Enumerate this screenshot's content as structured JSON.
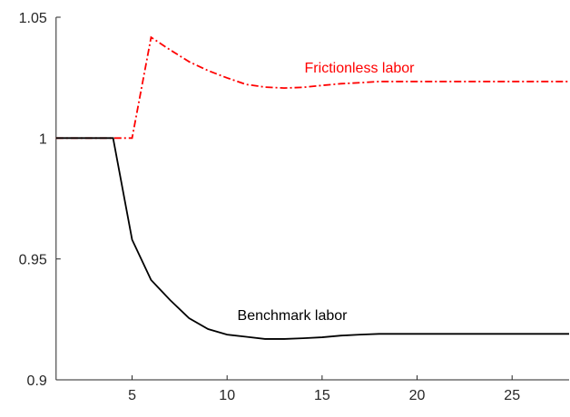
{
  "chart_data": {
    "type": "line",
    "x": [
      1,
      2,
      3,
      4,
      5,
      6,
      7,
      8,
      9,
      10,
      11,
      12,
      13,
      14,
      15,
      16,
      17,
      18,
      19,
      20,
      21,
      22,
      23,
      24,
      25,
      26,
      27,
      28
    ],
    "series": [
      {
        "name": "Frictionless labor",
        "color": "#ff0000",
        "dash": "dashdot",
        "values": [
          1,
          1,
          1,
          1,
          1,
          1.0417,
          1.0365,
          1.0316,
          1.0279,
          1.0249,
          1.0222,
          1.0211,
          1.0207,
          1.021,
          1.0218,
          1.0225,
          1.0229,
          1.0234,
          1.0234,
          1.0234,
          1.0234,
          1.0234,
          1.0234,
          1.0234,
          1.0234,
          1.0234,
          1.0234,
          1.0234
        ]
      },
      {
        "name": "Benchmark labor",
        "color": "#000000",
        "dash": "solid",
        "values": [
          1,
          1,
          1,
          1,
          0.958,
          0.9413,
          0.933,
          0.9255,
          0.921,
          0.9187,
          0.9178,
          0.9169,
          0.9169,
          0.9172,
          0.9176,
          0.9183,
          0.9187,
          0.919,
          0.919,
          0.919,
          0.919,
          0.919,
          0.919,
          0.919,
          0.919,
          0.919,
          0.919,
          0.919
        ]
      }
    ],
    "xlim": [
      1,
      28
    ],
    "ylim": [
      0.9,
      1.05
    ],
    "xticks": [
      5,
      10,
      15,
      20,
      25
    ],
    "yticks": [
      0.9,
      0.95,
      1,
      1.05
    ]
  }
}
